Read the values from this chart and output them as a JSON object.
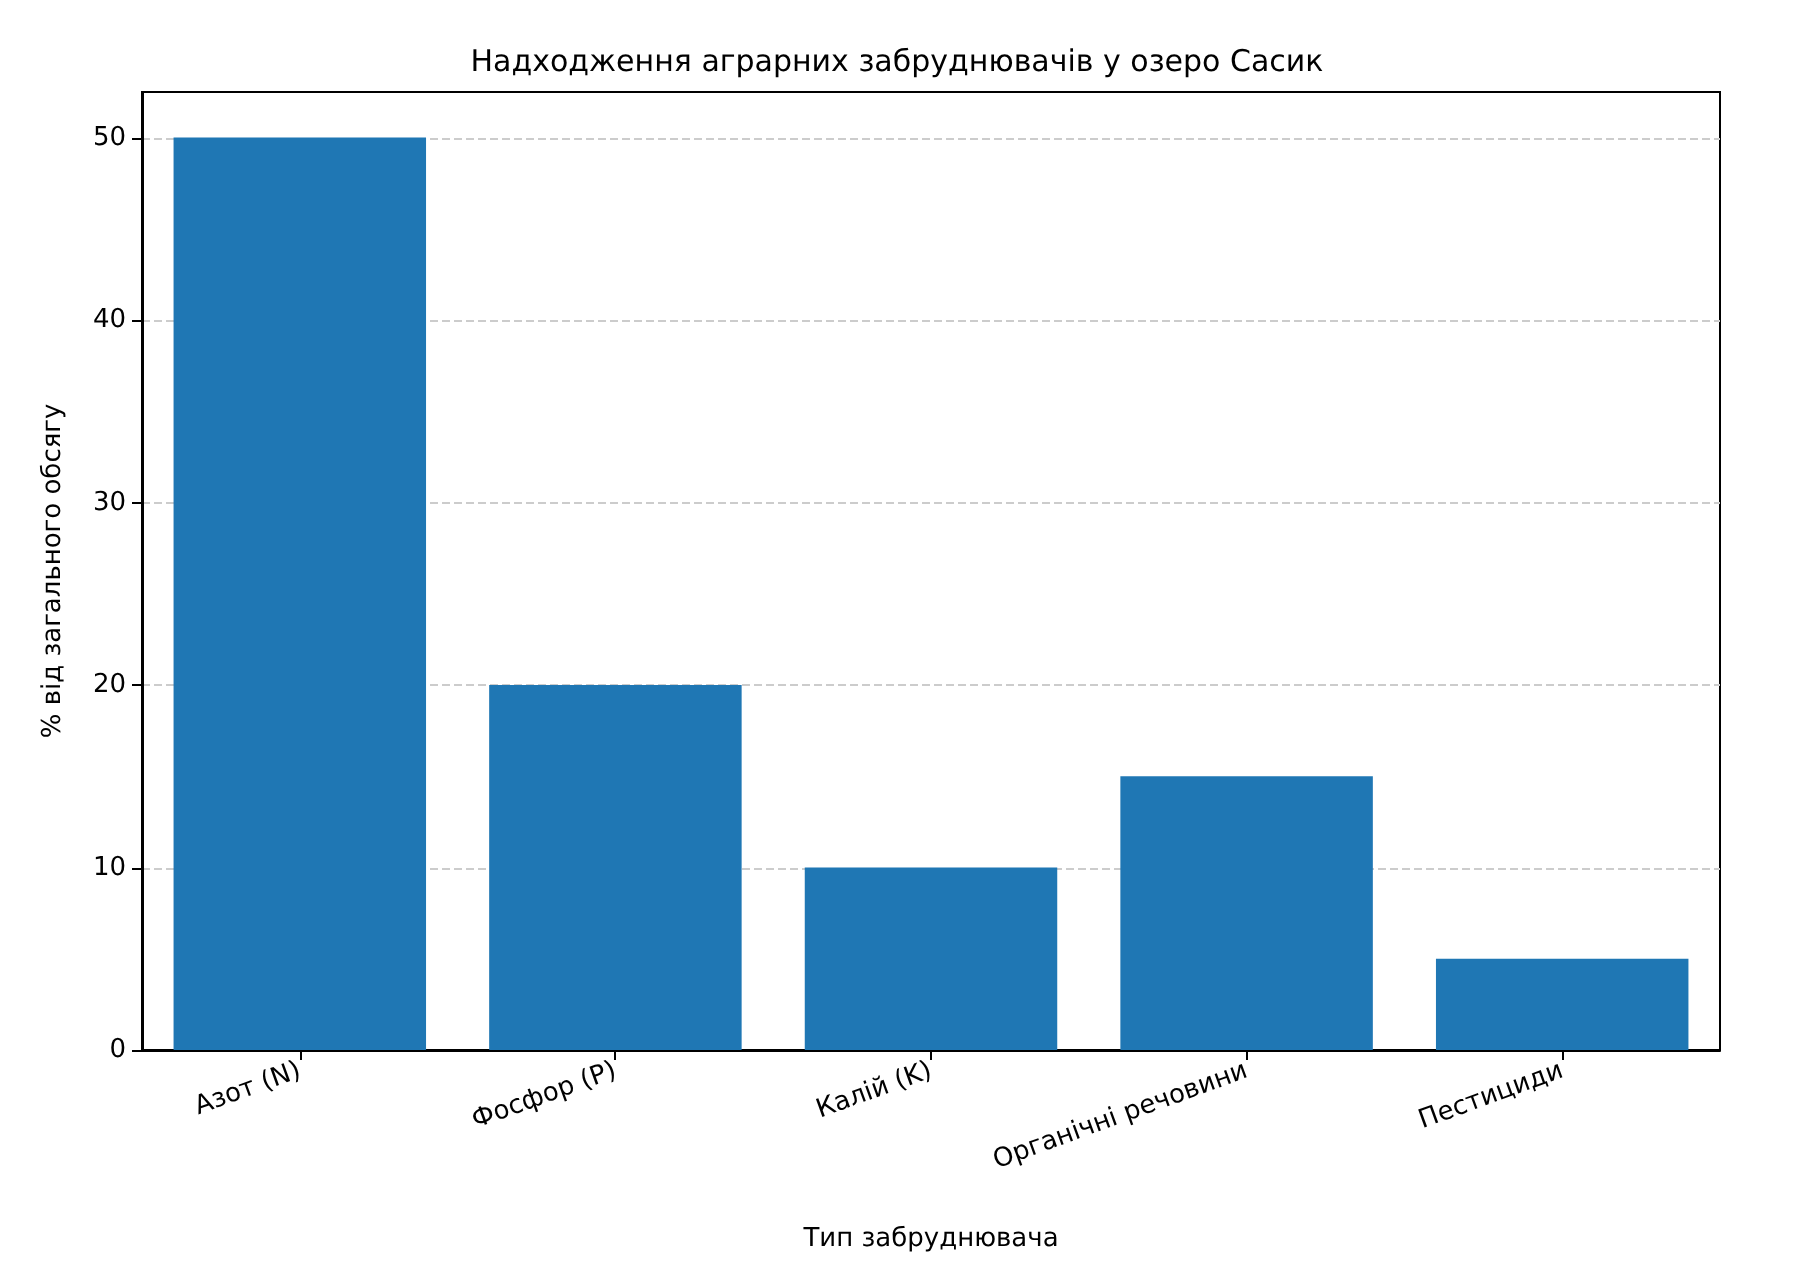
{
  "chart_data": {
    "type": "bar",
    "title": "Надходження аграрних забруднювачів у озеро Сасик",
    "xlabel": "Тип забруднювача",
    "ylabel": "% від загального обсягу",
    "categories": [
      "Азот (N)",
      "Фосфор (P)",
      "Калій (K)",
      "Органічні речовини",
      "Пестициди"
    ],
    "values": [
      50,
      20,
      10,
      15,
      5
    ],
    "color": "#1f77b4",
    "ylim": [
      0,
      52.5
    ],
    "yticks": [
      0,
      10,
      20,
      30,
      40,
      50
    ],
    "grid": "y"
  }
}
